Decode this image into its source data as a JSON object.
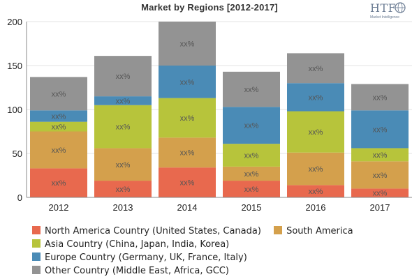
{
  "title": "Market by Regions [2012-2017]",
  "logo": {
    "text": "HTF",
    "subtext": "Market Intelligence"
  },
  "chart_data": {
    "type": "bar",
    "stacked": true,
    "title": "Market by Regions [2012-2017]",
    "xlabel": "",
    "ylabel": "",
    "categories": [
      "2012",
      "2013",
      "2014",
      "2015",
      "2016",
      "2017"
    ],
    "ylim": [
      0,
      200
    ],
    "yticks": [
      0,
      50,
      100,
      150,
      200
    ],
    "grid": "horizontal",
    "legend_position": "bottom",
    "data_label_text": "xx%",
    "series": [
      {
        "name": "North America Country (United States, Canada)",
        "color": "#e8694e",
        "values": [
          33,
          19,
          34,
          19,
          14,
          10
        ]
      },
      {
        "name": "South America",
        "color": "#d4a04c",
        "values": [
          42,
          37,
          34,
          16,
          37,
          31
        ]
      },
      {
        "name": "Asia Country (China, Japan, India, Korea)",
        "color": "#b7c43b",
        "values": [
          11,
          49,
          45,
          26,
          47,
          15
        ]
      },
      {
        "name": "Europe Country (Germany, UK, France, Italy)",
        "color": "#4a8bb6",
        "values": [
          13,
          10,
          37,
          42,
          32,
          43
        ]
      },
      {
        "name": "Other Country (Middle East, Africa, GCC)",
        "color": "#939393",
        "values": [
          38,
          46,
          50,
          40,
          34,
          30
        ]
      }
    ]
  }
}
